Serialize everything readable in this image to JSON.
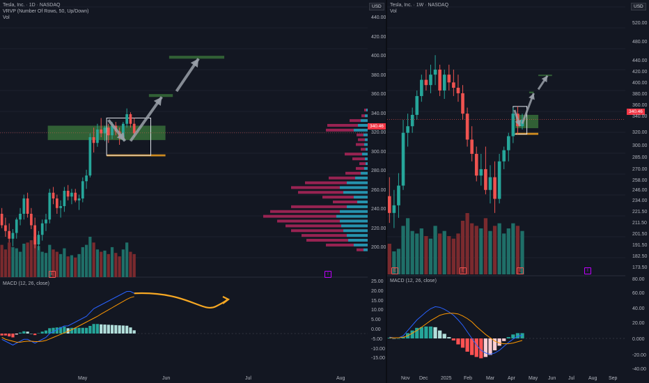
{
  "colors": {
    "bg": "#131722",
    "up": "#26a69a",
    "down": "#ef5350",
    "grid": "#1e222d",
    "zone": "#3c7a3c",
    "orange": "#f0a020",
    "arrow": "#9aa0a8",
    "macd": "#2962ff",
    "signal": "#ff9800"
  },
  "left": {
    "title": "Tesla, Inc. · 1D · NASDAQ",
    "indicator": "VRVP (Number Of Rows, 50, Up/Down)",
    "vol": "Vol",
    "currency": "USD",
    "last_price": "340.46",
    "macd_title": "MACD (12, 26, close)",
    "price_ticks": [
      "440.00",
      "420.00",
      "400.00",
      "380.00",
      "360.00",
      "340.00",
      "320.00",
      "300.00",
      "280.00",
      "260.00",
      "240.00",
      "220.00",
      "200.00"
    ],
    "macd_ticks": [
      "25.00",
      "20.00",
      "15.00",
      "10.00",
      "5.00",
      "0.00",
      "-5.00",
      "-10.00",
      "-15.00"
    ],
    "x_ticks": [
      "May",
      "Jun",
      "Jul",
      "Aug"
    ],
    "earnings_marker": "E",
    "event_marker": "I",
    "chart_data": {
      "type": "candlestick",
      "ylim": [
        195,
        462
      ],
      "ohlc": [
        [
          256,
          262,
          241,
          244
        ],
        [
          244,
          252,
          232,
          238
        ],
        [
          238,
          246,
          226,
          230
        ],
        [
          230,
          240,
          222,
          236
        ],
        [
          236,
          252,
          230,
          250
        ],
        [
          250,
          262,
          244,
          256
        ],
        [
          256,
          276,
          250,
          272
        ],
        [
          272,
          278,
          252,
          256
        ],
        [
          256,
          262,
          240,
          244
        ],
        [
          244,
          252,
          220,
          224
        ],
        [
          224,
          238,
          218,
          234
        ],
        [
          234,
          250,
          228,
          246
        ],
        [
          246,
          256,
          238,
          250
        ],
        [
          250,
          282,
          246,
          278
        ],
        [
          278,
          284,
          266,
          272
        ],
        [
          272,
          276,
          256,
          262
        ],
        [
          262,
          270,
          252,
          264
        ],
        [
          264,
          284,
          258,
          280
        ],
        [
          280,
          286,
          270,
          274
        ],
        [
          274,
          282,
          266,
          278
        ],
        [
          278,
          282,
          268,
          270
        ],
        [
          270,
          276,
          260,
          272
        ],
        [
          272,
          294,
          268,
          290
        ],
        [
          290,
          302,
          282,
          296
        ],
        [
          296,
          340,
          294,
          336
        ],
        [
          336,
          346,
          320,
          330
        ],
        [
          330,
          350,
          326,
          344
        ],
        [
          344,
          356,
          336,
          340
        ],
        [
          340,
          348,
          332,
          346
        ],
        [
          346,
          350,
          330,
          338
        ],
        [
          338,
          352,
          334,
          348
        ],
        [
          348,
          352,
          338,
          342
        ],
        [
          342,
          346,
          328,
          336
        ],
        [
          336,
          352,
          332,
          350
        ],
        [
          350,
          366,
          346,
          360
        ],
        [
          360,
          362,
          346,
          350
        ],
        [
          350,
          356,
          336,
          340
        ]
      ],
      "volume": [
        140,
        120,
        150,
        130,
        125,
        110,
        145,
        150,
        160,
        175,
        135,
        110,
        105,
        140,
        120,
        110,
        100,
        125,
        90,
        95,
        85,
        100,
        130,
        140,
        175,
        150,
        120,
        110,
        115,
        100,
        130,
        105,
        90,
        120,
        150,
        110,
        100
      ],
      "macd": [
        -3,
        -4,
        -5,
        -6,
        -5,
        -4,
        -3,
        -3,
        -4,
        -5,
        -4,
        -3,
        -2,
        0,
        1,
        2,
        3,
        4,
        4,
        5,
        6,
        7,
        8,
        9,
        11,
        13,
        14,
        15,
        16,
        17,
        18,
        19,
        20,
        21,
        22,
        22,
        21
      ],
      "signal": [
        -2,
        -3,
        -3.5,
        -4,
        -4.5,
        -4.5,
        -4.2,
        -4,
        -4,
        -4.2,
        -4.2,
        -4,
        -3.6,
        -2.8,
        -2,
        -1.2,
        -0.4,
        0.4,
        1.2,
        2,
        3,
        4,
        5,
        6,
        7,
        8,
        9,
        10.2,
        11.3,
        12.4,
        13.5,
        14.6,
        15.7,
        16.8,
        17.9,
        18.8,
        19.3
      ],
      "histogram": [
        -1,
        -1,
        -1.5,
        -2,
        -0.5,
        0.5,
        1.2,
        1,
        0,
        -0.8,
        0.2,
        1,
        1.6,
        2.8,
        3,
        3.2,
        3.4,
        3.6,
        2.8,
        3,
        3,
        3,
        3,
        3,
        4,
        5,
        5,
        4.8,
        4.7,
        4.6,
        4.5,
        4.4,
        4.3,
        4.2,
        4.1,
        3.2,
        1.7
      ],
      "zones": [
        {
          "kind": "green",
          "y0": 333,
          "y1": 348,
          "x0": 13,
          "x1": 45
        },
        {
          "kind": "green",
          "y0": 378,
          "y1": 381,
          "x0": 40.5,
          "x1": 47
        },
        {
          "kind": "green",
          "y0": 418,
          "y1": 421,
          "x0": 46,
          "x1": 61
        },
        {
          "kind": "orange",
          "y0": 316,
          "y1": 318,
          "x0": 29,
          "x1": 45
        },
        {
          "kind": "box",
          "y0": 317,
          "y1": 356,
          "x0": 29,
          "x1": 41
        }
      ],
      "arrows": [
        [
          [
            29.5,
            354
          ],
          [
            34,
            332
          ]
        ],
        [
          [
            35.5,
            332
          ],
          [
            44,
            378
          ]
        ],
        [
          [
            48,
            384
          ],
          [
            54,
            418
          ]
        ]
      ],
      "profile": {
        "rows": [
          {
            "p": 364,
            "up": 2,
            "down": 3
          },
          {
            "p": 358,
            "up": 4,
            "down": 5
          },
          {
            "p": 353,
            "up": 10,
            "down": 16
          },
          {
            "p": 348,
            "up": 14,
            "down": 44
          },
          {
            "p": 343,
            "up": 20,
            "down": 40
          },
          {
            "p": 338,
            "up": 6,
            "down": 10
          },
          {
            "p": 333,
            "up": 4,
            "down": 10
          },
          {
            "p": 328,
            "up": 5,
            "down": 12
          },
          {
            "p": 323,
            "up": 3,
            "down": 7
          },
          {
            "p": 318,
            "up": 8,
            "down": 25
          },
          {
            "p": 313,
            "up": 4,
            "down": 18
          },
          {
            "p": 308,
            "up": 3,
            "down": 9
          },
          {
            "p": 303,
            "up": 5,
            "down": 12
          },
          {
            "p": 298,
            "up": 10,
            "down": 22
          },
          {
            "p": 293,
            "up": 18,
            "down": 38
          },
          {
            "p": 288,
            "up": 30,
            "down": 60
          },
          {
            "p": 283,
            "up": 40,
            "down": 70
          },
          {
            "p": 278,
            "up": 35,
            "down": 65
          },
          {
            "p": 273,
            "up": 20,
            "down": 45
          },
          {
            "p": 268,
            "up": 15,
            "down": 35
          },
          {
            "p": 263,
            "up": 30,
            "down": 80
          },
          {
            "p": 258,
            "up": 40,
            "down": 100
          },
          {
            "p": 253,
            "up": 45,
            "down": 105
          },
          {
            "p": 248,
            "up": 40,
            "down": 90
          },
          {
            "p": 243,
            "up": 38,
            "down": 80
          },
          {
            "p": 238,
            "up": 35,
            "down": 75
          },
          {
            "p": 233,
            "up": 30,
            "down": 65
          },
          {
            "p": 228,
            "up": 28,
            "down": 60
          },
          {
            "p": 223,
            "up": 20,
            "down": 40
          },
          {
            "p": 218,
            "up": 6,
            "down": 10
          }
        ]
      }
    }
  },
  "right": {
    "title": "Tesla, Inc. · 1W · NASDAQ",
    "vol": "Vol",
    "currency": "USD",
    "last_price": "340.46",
    "macd_title": "MACD (12, 26, close)",
    "price_ticks": [
      "520.00",
      "480.00",
      "440.00",
      "420.00",
      "400.00",
      "380.00",
      "360.00",
      "340.00",
      "320.00",
      "300.00",
      "285.00",
      "270.00",
      "258.00",
      "246.00",
      "234.00",
      "221.50",
      "211.50",
      "201.50",
      "191.50",
      "182.50",
      "173.50",
      "80.00"
    ],
    "macd_ticks": [
      "60.00",
      "40.00",
      "20.00",
      "0.000",
      "-20.00",
      "-40.00"
    ],
    "x_ticks": [
      "Nov",
      "Dec",
      "2025",
      "Feb",
      "Mar",
      "Apr",
      "May",
      "Jun",
      "Jul",
      "Aug",
      "Sep"
    ],
    "earnings_marker": "E",
    "event_marker": "I",
    "chart_data": {
      "type": "candlestick",
      "ohlc": [
        [
          238,
          260,
          210,
          220
        ],
        [
          220,
          245,
          205,
          228
        ],
        [
          228,
          265,
          215,
          250
        ],
        [
          250,
          340,
          245,
          320
        ],
        [
          320,
          350,
          300,
          330
        ],
        [
          330,
          360,
          320,
          348
        ],
        [
          348,
          390,
          340,
          380
        ],
        [
          380,
          420,
          370,
          410
        ],
        [
          410,
          430,
          390,
          400
        ],
        [
          400,
          440,
          385,
          420
        ],
        [
          420,
          460,
          400,
          430
        ],
        [
          430,
          440,
          380,
          390
        ],
        [
          390,
          430,
          375,
          420
        ],
        [
          420,
          440,
          390,
          405
        ],
        [
          405,
          430,
          380,
          395
        ],
        [
          395,
          420,
          370,
          385
        ],
        [
          385,
          400,
          340,
          350
        ],
        [
          350,
          360,
          300,
          310
        ],
        [
          310,
          330,
          280,
          290
        ],
        [
          290,
          300,
          255,
          262
        ],
        [
          262,
          290,
          250,
          270
        ],
        [
          270,
          300,
          240,
          245
        ],
        [
          245,
          275,
          230,
          260
        ],
        [
          260,
          280,
          220,
          235
        ],
        [
          235,
          290,
          230,
          280
        ],
        [
          280,
          300,
          270,
          295
        ],
        [
          295,
          320,
          280,
          315
        ],
        [
          315,
          360,
          305,
          350
        ],
        [
          350,
          362,
          318,
          330
        ],
        [
          330,
          350,
          325,
          340
        ]
      ],
      "volume": [
        60,
        45,
        50,
        95,
        110,
        85,
        80,
        90,
        75,
        70,
        95,
        80,
        85,
        75,
        70,
        80,
        105,
        120,
        100,
        95,
        90,
        110,
        85,
        95,
        100,
        80,
        90,
        100,
        95,
        85
      ],
      "macd": [
        2,
        1,
        1,
        4,
        12,
        20,
        28,
        34,
        40,
        45,
        48,
        47,
        44,
        40,
        35,
        28,
        20,
        10,
        0,
        -10,
        -18,
        -22,
        -24,
        -22,
        -18,
        -12,
        -6,
        -1,
        3,
        5
      ],
      "signal": [
        1,
        1,
        1,
        2,
        4,
        8,
        12,
        17,
        22,
        27,
        31,
        35,
        37,
        38,
        38,
        37,
        34,
        30,
        25,
        18,
        12,
        6,
        1,
        -4,
        -7,
        -8,
        -8,
        -7,
        -5,
        -3
      ],
      "histogram": [
        1,
        0,
        0,
        2,
        8,
        12,
        16,
        17,
        18,
        18,
        17,
        12,
        7,
        2,
        -3,
        -9,
        -14,
        -20,
        -25,
        -28,
        -30,
        -28,
        -25,
        -18,
        -11,
        -4,
        2,
        6,
        8,
        8
      ],
      "zones": [
        {
          "kind": "green",
          "y0": 327,
          "y1": 348,
          "x0": 28,
          "x1": 33
        },
        {
          "kind": "green",
          "y0": 385,
          "y1": 388,
          "x0": 31,
          "x1": 32
        },
        {
          "kind": "green",
          "y0": 418,
          "y1": 420,
          "x0": 33,
          "x1": 36
        },
        {
          "kind": "orange",
          "y0": 317,
          "y1": 320,
          "x0": 28,
          "x1": 33
        },
        {
          "kind": "box",
          "y0": 318,
          "y1": 362,
          "x0": 27.5,
          "x1": 30.5
        }
      ],
      "arrows": [
        [
          [
            27.8,
            356
          ],
          [
            29,
            330
          ]
        ],
        [
          [
            29.5,
            334
          ],
          [
            32,
            385
          ]
        ],
        [
          [
            33,
            392
          ],
          [
            35,
            418
          ]
        ]
      ]
    }
  }
}
